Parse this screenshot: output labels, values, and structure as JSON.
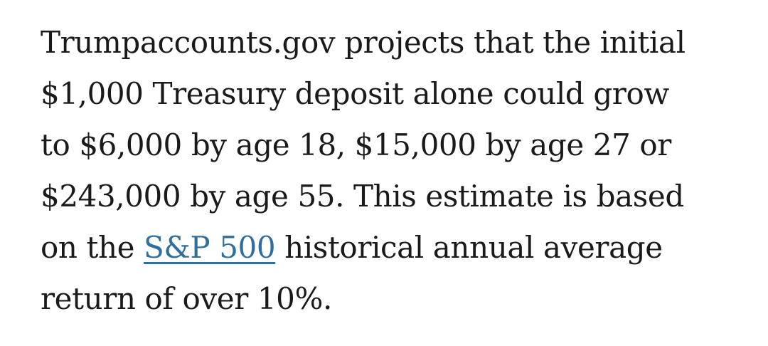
{
  "article": {
    "line1": "Trumpaccounts.gov projects that the initial",
    "line2": "$1,000 Treasury deposit alone could grow",
    "line3": "to $6,000 by age 18, $15,000 by age 27 or",
    "line4": "$243,000 by age 55. This estimate is based",
    "line5_before_link": "on the ",
    "link_text": "S&P 500",
    "line5_after_link": " historical annual average",
    "line6": "return of over 10%."
  },
  "colors": {
    "text": "#1a1a1a",
    "link": "#2f6f9f",
    "background": "#ffffff"
  }
}
